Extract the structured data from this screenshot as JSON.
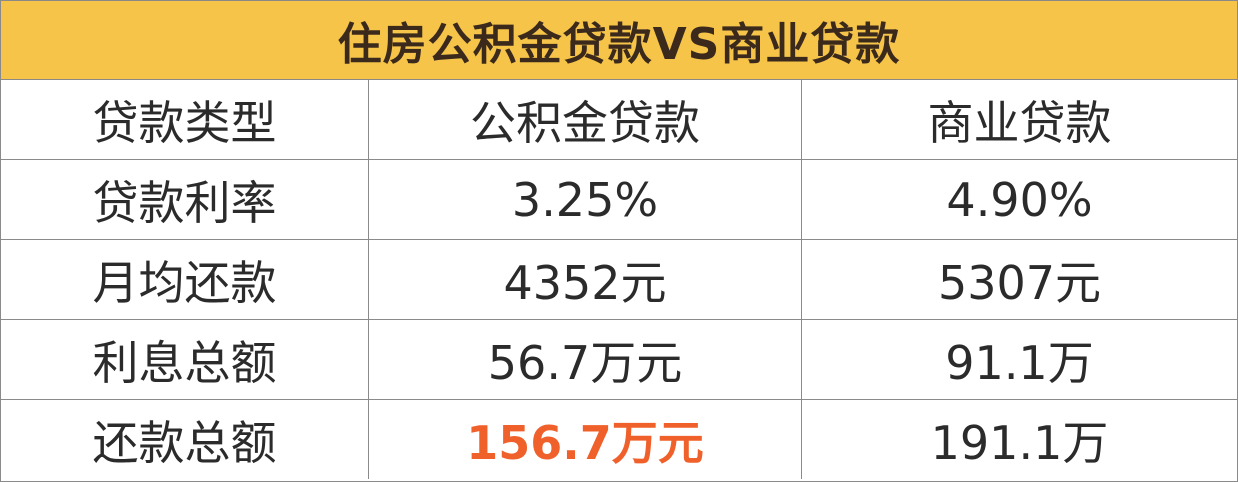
{
  "title": "住房公积金贷款VS商业贷款",
  "table": {
    "header": [
      "贷款类型",
      "公积金贷款",
      "商业贷款"
    ],
    "rows": [
      [
        "贷款利率",
        "3.25%",
        "4.90%"
      ],
      [
        "月均还款",
        "4352元",
        "5307元"
      ],
      [
        "利息总额",
        "56.7万元",
        "91.1万"
      ],
      [
        "还款总额",
        "156.7万元",
        "191.1万"
      ]
    ]
  }
}
